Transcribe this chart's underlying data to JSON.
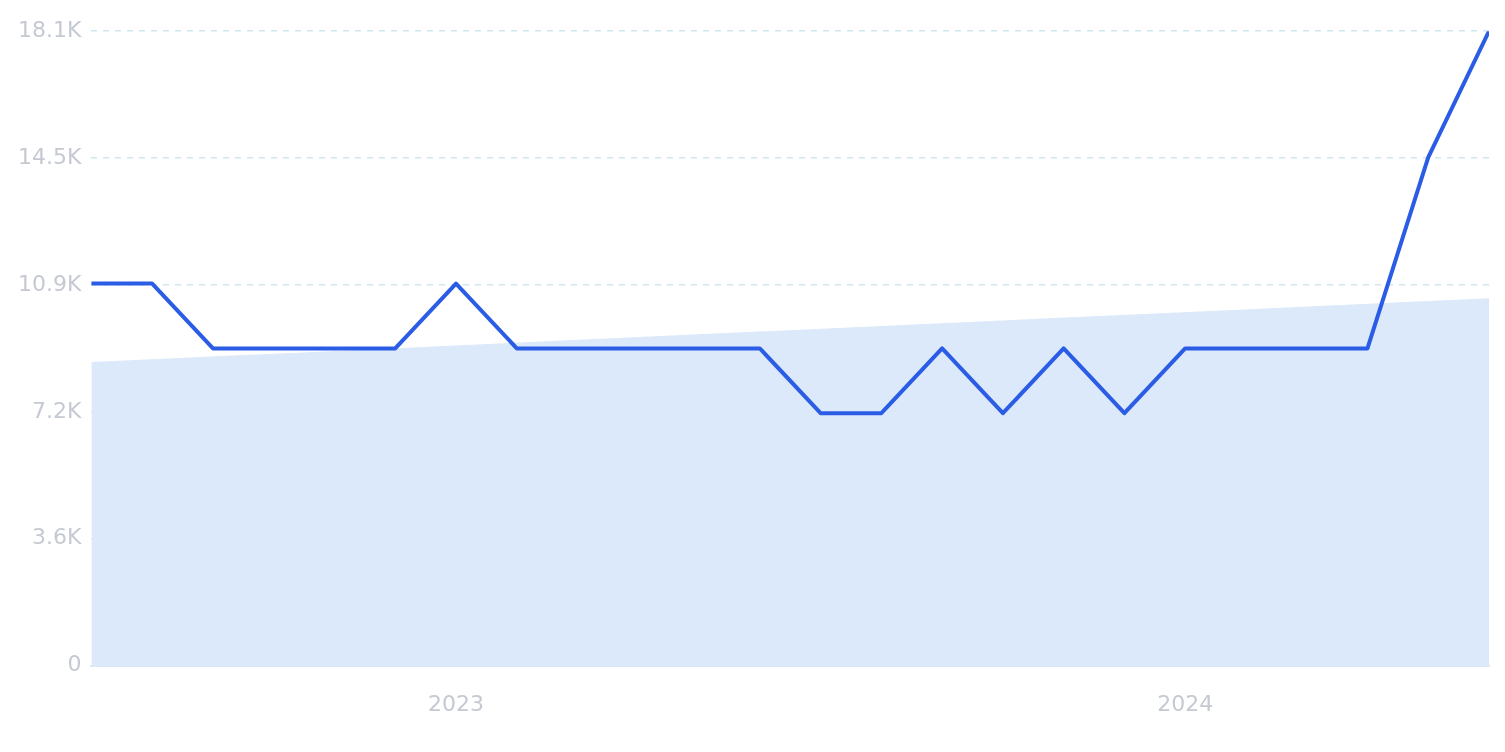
{
  "chart_data": {
    "type": "line",
    "x": [
      "2022-07",
      "2022-08",
      "2022-09",
      "2022-10",
      "2022-11",
      "2022-12",
      "2023-01",
      "2023-02",
      "2023-03",
      "2023-04",
      "2023-05",
      "2023-06",
      "2023-07",
      "2023-08",
      "2023-09",
      "2023-10",
      "2023-11",
      "2023-12",
      "2024-01",
      "2024-02",
      "2024-03",
      "2024-04",
      "2024-05",
      "2024-06"
    ],
    "series": [
      {
        "type": "area",
        "color": "#dbe9fa",
        "x": [
          "2022-07",
          "2024-06"
        ],
        "values": [
          8660,
          10480
        ]
      },
      {
        "color": "#2b5ce6",
        "values": [
          10900,
          10900,
          9050,
          9050,
          9050,
          9050,
          10900,
          9050,
          9050,
          9050,
          9050,
          9050,
          7200,
          7200,
          9050,
          7200,
          9050,
          7200,
          9050,
          9050,
          9050,
          9050,
          14500,
          18100
        ]
      }
    ],
    "xlim": [
      "2022-07",
      "2024-06"
    ],
    "xticks": [
      {
        "value": "2023-01",
        "label": "2023"
      },
      {
        "value": "2024-01",
        "label": "2024"
      }
    ],
    "ylim": [
      0,
      18100
    ],
    "yticks": [
      0,
      {
        "value": 3620,
        "label": "3.6K"
      },
      {
        "value": 7240,
        "label": "7.2K"
      },
      {
        "value": 10860,
        "label": "10.9K"
      },
      {
        "value": 14480,
        "label": "14.5K"
      },
      {
        "value": 18100,
        "label": "18.1K"
      }
    ],
    "grid": "y",
    "legend": false,
    "marker": "none",
    "line_style": "solid"
  }
}
